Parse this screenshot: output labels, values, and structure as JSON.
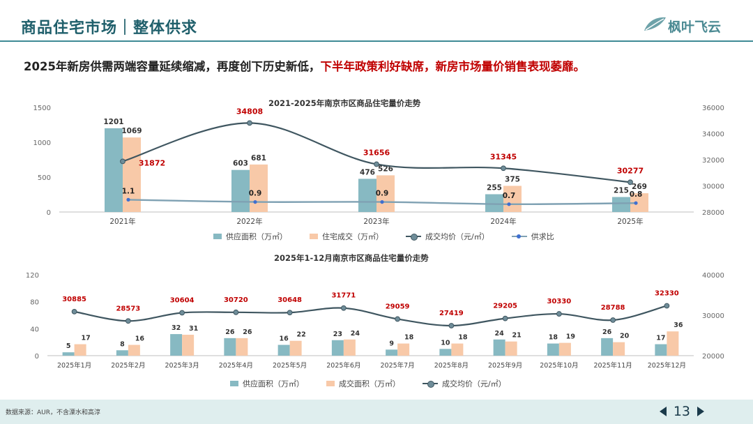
{
  "header": {
    "title": "商品住宅市场｜整体供求",
    "logo_text": "枫叶飞云"
  },
  "headline": {
    "part1": "2025年新房供需两端容量延续缩减，再度创下历史新低，",
    "part2": "下半年政策利好缺席，新房市场量价销售表现萎靡。"
  },
  "colors": {
    "supply": "#87b9c2",
    "deal": "#f8c9a8",
    "price_line": "#3f5660",
    "ratio_line": "#7fa1b3",
    "highlight": "#c00000"
  },
  "chart_data": [
    {
      "type": "bar",
      "title": "2021-2025年南京市区商品住宅量价走势",
      "categories": [
        "2021年",
        "2022年",
        "2023年",
        "2024年",
        "2025年"
      ],
      "series": [
        {
          "name": "供应面积（万㎡）",
          "kind": "bar",
          "values": [
            1201,
            603,
            476,
            255,
            215
          ]
        },
        {
          "name": "住宅成交（万㎡）",
          "kind": "bar",
          "values": [
            1069,
            681,
            526,
            375,
            269
          ]
        },
        {
          "name": "成交均价（元/㎡）",
          "kind": "line",
          "axis": "right",
          "values": [
            31872,
            34808,
            31656,
            31345,
            30277
          ]
        },
        {
          "name": "供求比",
          "kind": "line",
          "axis": "left-ratio",
          "values": [
            1.1,
            0.9,
            0.9,
            0.7,
            0.8
          ]
        }
      ],
      "ylim_left": [
        0,
        1500
      ],
      "yticks_left": [
        "0",
        "500",
        "1000",
        "1500"
      ],
      "ylim_right": [
        28000,
        36000
      ],
      "yticks_right": [
        "28000",
        "30000",
        "32000",
        "34000",
        "36000"
      ]
    },
    {
      "type": "bar",
      "title": "2025年1-12月南京市区商品住宅量价走势",
      "categories": [
        "2025年1月",
        "2025年2月",
        "2025年3月",
        "2025年4月",
        "2025年5月",
        "2025年6月",
        "2025年7月",
        "2025年8月",
        "2025年9月",
        "2025年10月",
        "2025年11月",
        "2025年12月"
      ],
      "series": [
        {
          "name": "供应面积（万㎡）",
          "kind": "bar",
          "values": [
            5,
            8,
            32,
            26,
            16,
            23,
            9,
            10,
            24,
            18,
            26,
            17
          ]
        },
        {
          "name": "成交面积（万㎡）",
          "kind": "bar",
          "values": [
            17,
            16,
            31,
            26,
            22,
            24,
            18,
            18,
            21,
            19,
            20,
            36
          ]
        },
        {
          "name": "成交均价（元/㎡）",
          "kind": "line",
          "axis": "right",
          "values": [
            30885,
            28573,
            30604,
            30720,
            30648,
            31771,
            29059,
            27419,
            29205,
            30330,
            28788,
            32330
          ]
        }
      ],
      "ylim_left": [
        0,
        120
      ],
      "yticks_left": [
        "0",
        "40",
        "80",
        "120"
      ],
      "ylim_right": [
        20000,
        40000
      ],
      "yticks_right": [
        "20000",
        "30000",
        "40000"
      ]
    }
  ],
  "footer": {
    "source": "数据来源：AUR，不含溧水和高淳",
    "page": "13"
  }
}
